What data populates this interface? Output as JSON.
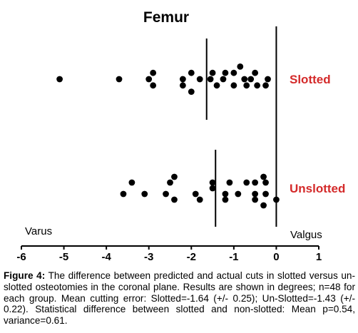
{
  "chart_data": {
    "type": "scatter",
    "title": "Femur",
    "xlim": [
      -6,
      1
    ],
    "x_ticks": [
      "-6",
      "-5",
      "-4",
      "-3",
      "-2",
      "-1",
      "0",
      "1"
    ],
    "x_tick_values": [
      -6,
      -5,
      -4,
      -3,
      -2,
      -1,
      0,
      1
    ],
    "left_axis_label": "Varus",
    "right_axis_label": "Valgus",
    "zero_reference_line": true,
    "grid": false,
    "colors": {
      "points": "#000000",
      "group_labels": "#d42a2a"
    },
    "series": [
      {
        "name": "Slotted",
        "mean": -1.64,
        "points": [
          {
            "x": -5.1,
            "y": 0.0
          },
          {
            "x": -3.7,
            "y": 0.0
          },
          {
            "x": -2.9,
            "y": 0.55
          },
          {
            "x": -3.0,
            "y": 0.0
          },
          {
            "x": -2.9,
            "y": -0.55
          },
          {
            "x": -2.0,
            "y": 0.55
          },
          {
            "x": -2.2,
            "y": 0.0
          },
          {
            "x": -2.2,
            "y": -0.55
          },
          {
            "x": -2.0,
            "y": -1.1
          },
          {
            "x": -1.8,
            "y": 0.0
          },
          {
            "x": -1.5,
            "y": 0.55
          },
          {
            "x": -1.55,
            "y": 0.0
          },
          {
            "x": -1.4,
            "y": -0.55
          },
          {
            "x": -1.2,
            "y": 0.55
          },
          {
            "x": -1.25,
            "y": 0.0
          },
          {
            "x": -1.0,
            "y": -0.55
          },
          {
            "x": -0.85,
            "y": 1.1
          },
          {
            "x": -1.0,
            "y": 0.55
          },
          {
            "x": -0.75,
            "y": 0.0
          },
          {
            "x": -0.7,
            "y": -0.55
          },
          {
            "x": -0.5,
            "y": 0.55
          },
          {
            "x": -0.6,
            "y": 0.0
          },
          {
            "x": -0.45,
            "y": -0.55
          },
          {
            "x": -0.2,
            "y": 0.0
          },
          {
            "x": -0.25,
            "y": -0.55
          }
        ]
      },
      {
        "name": "Unslotted",
        "mean": -1.43,
        "points": [
          {
            "x": -3.6,
            "y": -0.5
          },
          {
            "x": -3.4,
            "y": 0.5
          },
          {
            "x": -3.1,
            "y": -0.5
          },
          {
            "x": -2.6,
            "y": -0.5
          },
          {
            "x": -2.5,
            "y": 0.5
          },
          {
            "x": -2.4,
            "y": 1.0
          },
          {
            "x": -2.4,
            "y": -1.0
          },
          {
            "x": -1.9,
            "y": -0.5
          },
          {
            "x": -1.8,
            "y": -1.0
          },
          {
            "x": -1.5,
            "y": 0.5
          },
          {
            "x": -1.5,
            "y": 0.0
          },
          {
            "x": -1.2,
            "y": -0.5
          },
          {
            "x": -1.2,
            "y": -1.0
          },
          {
            "x": -1.1,
            "y": 0.5
          },
          {
            "x": -0.9,
            "y": -0.5
          },
          {
            "x": -0.7,
            "y": 0.5
          },
          {
            "x": -0.5,
            "y": 0.5
          },
          {
            "x": -0.5,
            "y": -0.5
          },
          {
            "x": -0.5,
            "y": -1.0
          },
          {
            "x": -0.3,
            "y": 1.0
          },
          {
            "x": -0.25,
            "y": 0.5
          },
          {
            "x": -0.25,
            "y": -0.5
          },
          {
            "x": -0.3,
            "y": -1.5
          },
          {
            "x": 0.0,
            "y": -1.0
          }
        ]
      }
    ]
  },
  "caption": {
    "label": "Figure 4:",
    "text": "The difference between predicted and actual cuts in slotted versus un-slotted osteotomies in the coronal plane. Results are shown in degrees; n=48 for each group. Mean cutting error: Slotted=-1.64 (+/- 0.25); Un-Slotted=-1.43 (+/- 0.22). Statistical difference between slotted and non-slotted: Mean p=0.54, variance=0.61."
  }
}
